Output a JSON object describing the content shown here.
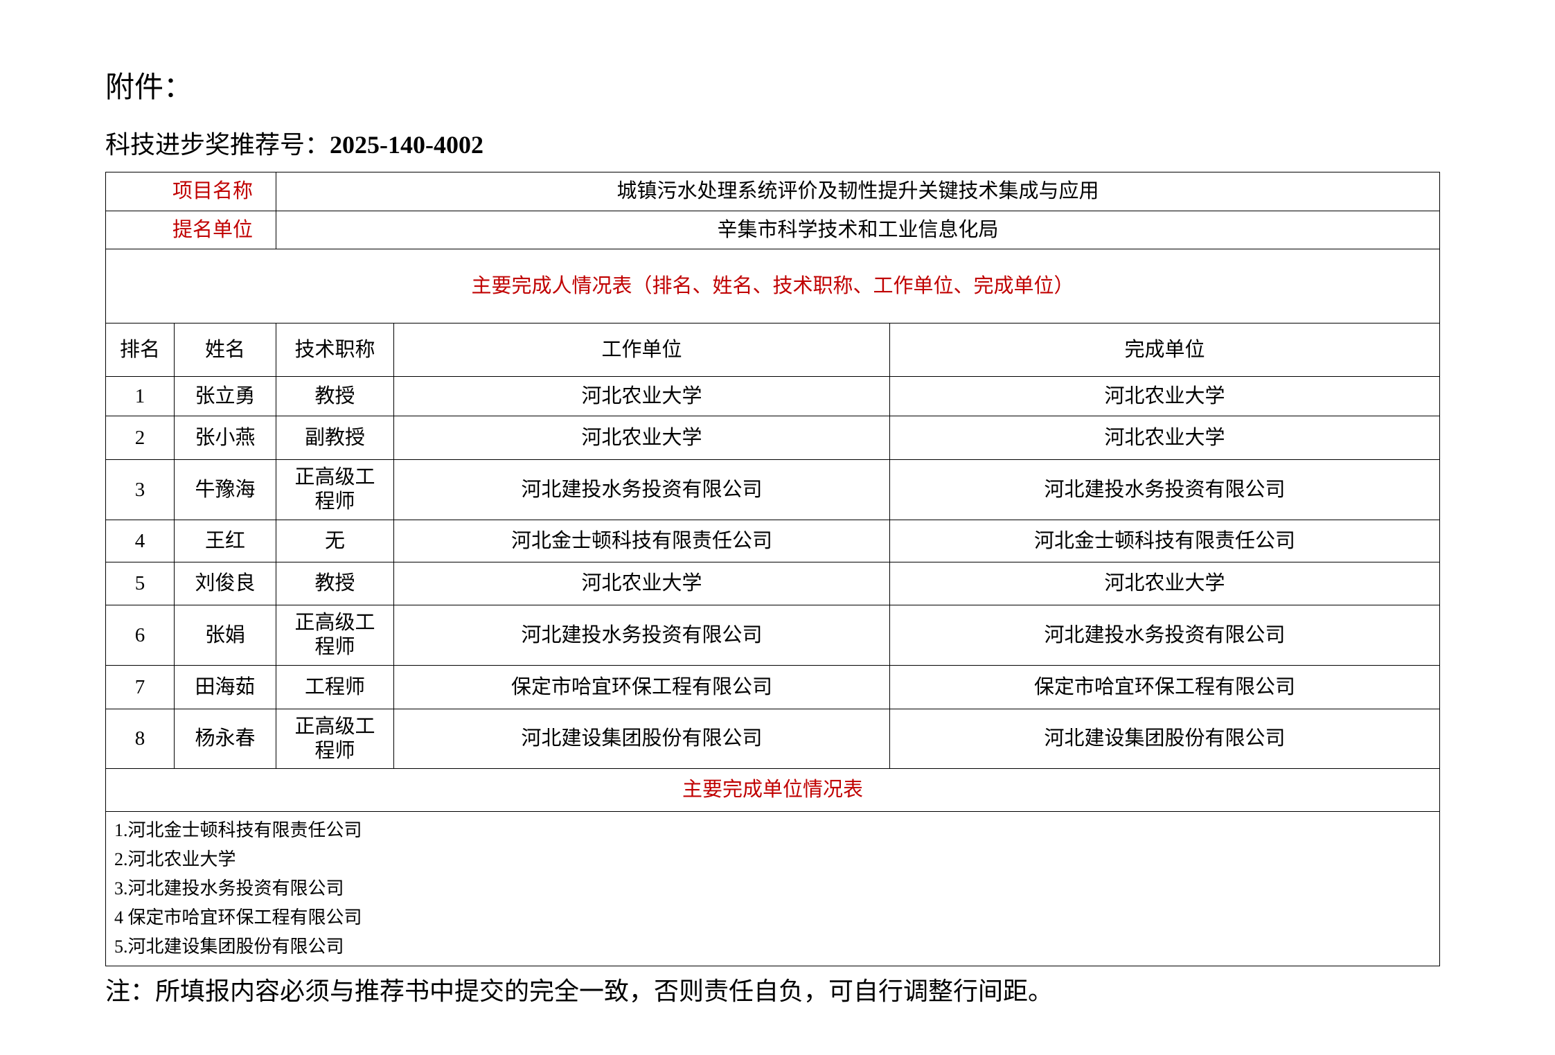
{
  "attachment_label": "附件：",
  "recommend": {
    "label": "科技进步奖推荐号：",
    "number": "2025-140-4002"
  },
  "project": {
    "label": "项目名称",
    "value": "城镇污水处理系统评价及韧性提升关键技术集成与应用"
  },
  "nominator": {
    "label": "提名单位",
    "value": "辛集市科学技术和工业信息化局"
  },
  "people_table": {
    "title": "主要完成人情况表（排名、姓名、技术职称、工作单位、完成单位）",
    "headers": [
      "排名",
      "姓名",
      "技术职称",
      "工作单位",
      "完成单位"
    ],
    "rows": [
      [
        "1",
        "张立勇",
        "教授",
        "河北农业大学",
        "河北农业大学"
      ],
      [
        "2",
        "张小燕",
        "副教授",
        "河北农业大学",
        "河北农业大学"
      ],
      [
        "3",
        "牛豫海",
        "正高级工程师",
        "河北建投水务投资有限公司",
        "河北建投水务投资有限公司"
      ],
      [
        "4",
        "王红",
        "无",
        "河北金士顿科技有限责任公司",
        "河北金士顿科技有限责任公司"
      ],
      [
        "5",
        "刘俊良",
        "教授",
        "河北农业大学",
        "河北农业大学"
      ],
      [
        "6",
        "张娟",
        "正高级工程师",
        "河北建投水务投资有限公司",
        "河北建投水务投资有限公司"
      ],
      [
        "7",
        "田海茹",
        "工程师",
        "保定市哈宜环保工程有限公司",
        "保定市哈宜环保工程有限公司"
      ],
      [
        "8",
        "杨永春",
        "正高级工程师",
        "河北建设集团股份有限公司",
        "河北建设集团股份有限公司"
      ]
    ]
  },
  "units_table": {
    "title": "主要完成单位情况表",
    "items": [
      "1.河北金士顿科技有限责任公司",
      "2.河北农业大学",
      "3.河北建投水务投资有限公司",
      "4 保定市哈宜环保工程有限公司",
      "5.河北建设集团股份有限公司"
    ]
  },
  "note": "注：所填报内容必须与推荐书中提交的完全一致，否则责任自负，可自行调整行间距。",
  "colors": {
    "label_red": "#c00000",
    "text": "#000000"
  }
}
